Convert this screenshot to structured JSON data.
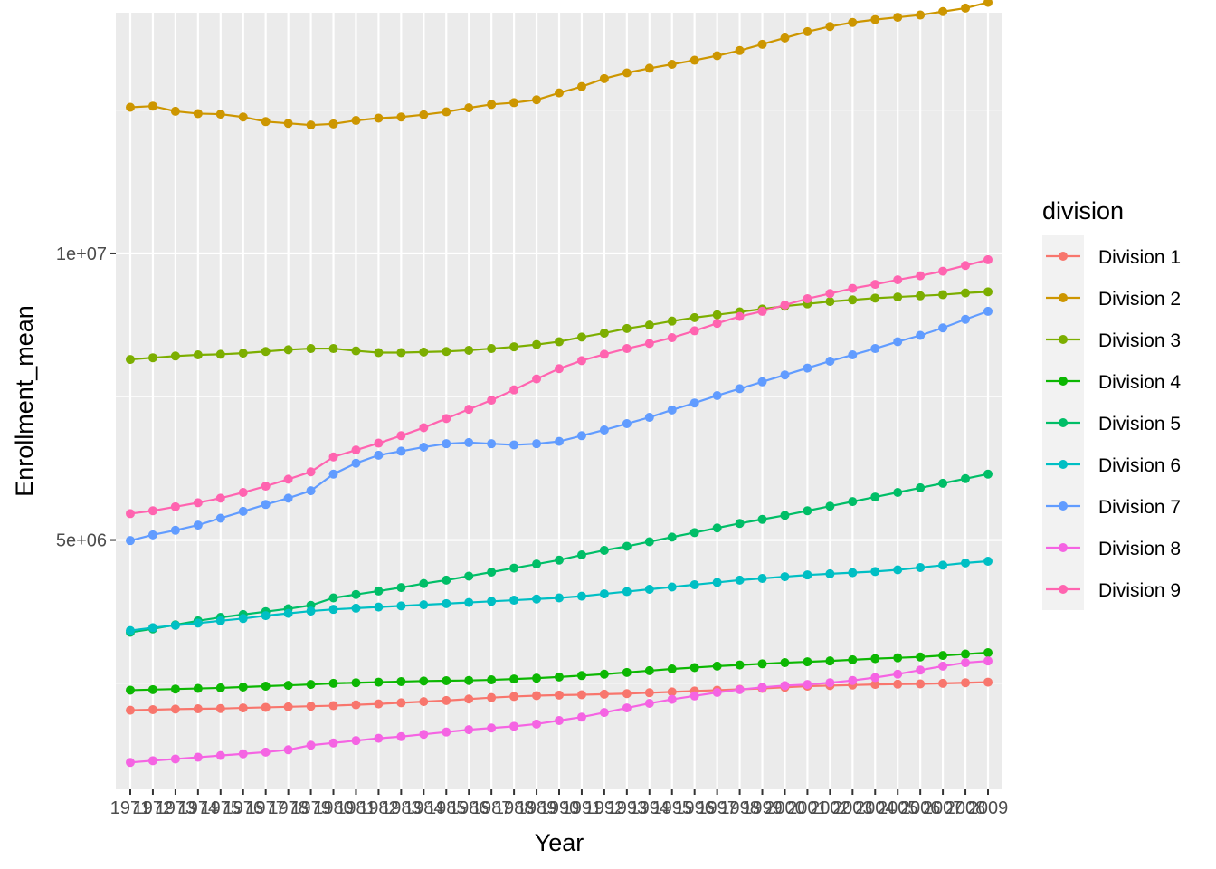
{
  "chart_data": {
    "type": "line",
    "xlabel": "Year",
    "ylabel": "Enrollment_mean",
    "x": [
      1971,
      1972,
      1973,
      1974,
      1975,
      1976,
      1977,
      1978,
      1979,
      1980,
      1981,
      1982,
      1983,
      1984,
      1985,
      1986,
      1987,
      1988,
      1989,
      1990,
      1991,
      1992,
      1993,
      1994,
      1995,
      1996,
      1997,
      1998,
      1999,
      2000,
      2001,
      2002,
      2003,
      2004,
      2005,
      2006,
      2007,
      2008,
      2009
    ],
    "x_tick_labels": [
      "1971",
      "1972",
      "1973",
      "1974",
      "1975",
      "1976",
      "1977",
      "1978",
      "1979",
      "1980",
      "1981",
      "1982",
      "1983",
      "1984",
      "1985",
      "1986",
      "1987",
      "1988",
      "1989",
      "1990",
      "1991",
      "1992",
      "1993",
      "1994",
      "1995",
      "1996",
      "1997",
      "1998",
      "1999",
      "2000",
      "2001",
      "2002",
      "2003",
      "2004",
      "2005",
      "2006",
      "2007",
      "2008",
      "2009"
    ],
    "ylim": [
      650000,
      14200000
    ],
    "y_ticks": [
      5000000,
      10000000
    ],
    "y_tick_labels": [
      "5e+06",
      "1e+07"
    ],
    "grid": true,
    "legend": {
      "title": "division",
      "placement": "right"
    },
    "series": [
      {
        "name": "Division 1",
        "color": "#F8766D",
        "values": [
          2030000,
          2040000,
          2050000,
          2055000,
          2060000,
          2070000,
          2080000,
          2090000,
          2100000,
          2110000,
          2125000,
          2140000,
          2160000,
          2180000,
          2200000,
          2225000,
          2250000,
          2270000,
          2285000,
          2295000,
          2300000,
          2310000,
          2320000,
          2335000,
          2350000,
          2365000,
          2380000,
          2395000,
          2410000,
          2430000,
          2450000,
          2460000,
          2470000,
          2480000,
          2485000,
          2490000,
          2500000,
          2510000,
          2520000
        ]
      },
      {
        "name": "Division 2",
        "color": "#CD9600",
        "values": [
          12550000,
          12570000,
          12480000,
          12440000,
          12430000,
          12380000,
          12300000,
          12270000,
          12240000,
          12260000,
          12320000,
          12360000,
          12380000,
          12420000,
          12470000,
          12540000,
          12600000,
          12630000,
          12680000,
          12800000,
          12910000,
          13050000,
          13150000,
          13230000,
          13300000,
          13370000,
          13450000,
          13540000,
          13650000,
          13760000,
          13870000,
          13960000,
          14030000,
          14080000,
          14120000,
          14160000,
          14220000,
          14280000,
          14380000
        ]
      },
      {
        "name": "Division 3",
        "color": "#7CAE00",
        "values": [
          8150000,
          8180000,
          8210000,
          8230000,
          8240000,
          8260000,
          8290000,
          8320000,
          8340000,
          8340000,
          8300000,
          8270000,
          8270000,
          8280000,
          8290000,
          8310000,
          8340000,
          8370000,
          8410000,
          8460000,
          8540000,
          8610000,
          8690000,
          8750000,
          8820000,
          8880000,
          8930000,
          8980000,
          9030000,
          9080000,
          9120000,
          9160000,
          9190000,
          9220000,
          9240000,
          9260000,
          9280000,
          9310000,
          9330000
        ]
      },
      {
        "name": "Division 4",
        "color": "#0CB702",
        "values": [
          2380000,
          2390000,
          2400000,
          2410000,
          2420000,
          2435000,
          2450000,
          2465000,
          2480000,
          2500000,
          2510000,
          2520000,
          2530000,
          2540000,
          2545000,
          2550000,
          2560000,
          2575000,
          2590000,
          2610000,
          2635000,
          2660000,
          2690000,
          2720000,
          2750000,
          2775000,
          2800000,
          2820000,
          2840000,
          2860000,
          2875000,
          2890000,
          2910000,
          2930000,
          2945000,
          2960000,
          2985000,
          3010000,
          3035000
        ]
      },
      {
        "name": "Division 5",
        "color": "#00BE67",
        "values": [
          3390000,
          3450000,
          3520000,
          3590000,
          3650000,
          3700000,
          3750000,
          3800000,
          3860000,
          3990000,
          4050000,
          4110000,
          4170000,
          4240000,
          4300000,
          4370000,
          4440000,
          4510000,
          4580000,
          4650000,
          4740000,
          4820000,
          4890000,
          4970000,
          5050000,
          5130000,
          5210000,
          5290000,
          5360000,
          5430000,
          5510000,
          5590000,
          5670000,
          5750000,
          5830000,
          5910000,
          5990000,
          6070000,
          6150000
        ]
      },
      {
        "name": "Division 6",
        "color": "#00BFC4",
        "values": [
          3420000,
          3470000,
          3510000,
          3550000,
          3590000,
          3630000,
          3680000,
          3720000,
          3760000,
          3790000,
          3810000,
          3830000,
          3850000,
          3870000,
          3890000,
          3910000,
          3930000,
          3950000,
          3970000,
          3990000,
          4020000,
          4060000,
          4100000,
          4140000,
          4180000,
          4220000,
          4260000,
          4300000,
          4330000,
          4360000,
          4390000,
          4410000,
          4430000,
          4450000,
          4480000,
          4520000,
          4560000,
          4600000,
          4630000
        ]
      },
      {
        "name": "Division 7",
        "color": "#619CFF",
        "values": [
          4990000,
          5090000,
          5170000,
          5260000,
          5380000,
          5500000,
          5620000,
          5730000,
          5860000,
          6150000,
          6340000,
          6480000,
          6550000,
          6620000,
          6680000,
          6700000,
          6680000,
          6660000,
          6680000,
          6720000,
          6820000,
          6920000,
          7030000,
          7140000,
          7270000,
          7390000,
          7520000,
          7640000,
          7760000,
          7880000,
          8000000,
          8120000,
          8230000,
          8340000,
          8460000,
          8570000,
          8700000,
          8850000,
          8990000
        ]
      },
      {
        "name": "Division 8",
        "color": "#F564E3",
        "values": [
          1120000,
          1150000,
          1180000,
          1210000,
          1240000,
          1270000,
          1300000,
          1340000,
          1420000,
          1460000,
          1500000,
          1540000,
          1570000,
          1610000,
          1650000,
          1690000,
          1720000,
          1750000,
          1790000,
          1850000,
          1910000,
          1990000,
          2070000,
          2150000,
          2220000,
          2280000,
          2340000,
          2390000,
          2430000,
          2460000,
          2480000,
          2510000,
          2550000,
          2600000,
          2660000,
          2730000,
          2800000,
          2860000,
          2890000
        ]
      },
      {
        "name": "Division 9",
        "color": "#FF64B0",
        "values": [
          5460000,
          5510000,
          5580000,
          5650000,
          5730000,
          5830000,
          5940000,
          6060000,
          6190000,
          6450000,
          6570000,
          6690000,
          6820000,
          6960000,
          7120000,
          7280000,
          7440000,
          7620000,
          7810000,
          7990000,
          8130000,
          8240000,
          8340000,
          8430000,
          8530000,
          8650000,
          8780000,
          8900000,
          8990000,
          9100000,
          9210000,
          9300000,
          9390000,
          9460000,
          9540000,
          9610000,
          9690000,
          9790000,
          9890000
        ]
      }
    ]
  }
}
